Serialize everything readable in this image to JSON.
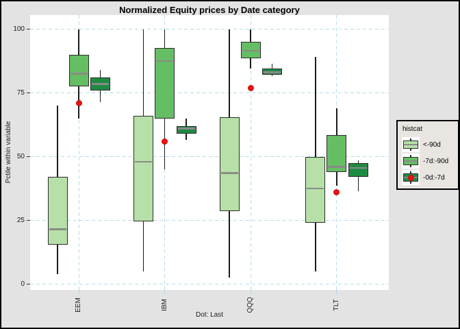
{
  "title": "Normalized Equity prices by Date category",
  "caption": "Dot: Last",
  "y_axis": {
    "label": "Pctile within variable",
    "ticks": [
      100,
      75,
      50,
      25,
      0
    ]
  },
  "x_axis": {
    "categories": [
      "EEM",
      "IBM",
      "QQQ",
      "TLT"
    ]
  },
  "legend": {
    "title": "histcat",
    "position": "right",
    "items": [
      {
        "label": "<-90d",
        "color": "#b7e0a8",
        "has_dot": false
      },
      {
        "label": "-7d:-90d",
        "color": "#65bd64",
        "has_dot": false
      },
      {
        "label": "-0d:-7d",
        "color": "#1f8a42",
        "has_dot": true
      }
    ]
  },
  "colors": {
    "light_green": "#b7e0a8",
    "medium_green": "#65bd64",
    "dark_green": "#1f8a42",
    "median_gray": "#8a8a8a",
    "dot_red": "#ee1111",
    "grid_blue": "#b5dce8",
    "background": "#e3e3e3",
    "panel": "#ffffff"
  },
  "chart_data": {
    "type": "boxplot",
    "title": "Normalized Equity prices by Date category",
    "xlabel": "",
    "ylabel": "Pctile within variable",
    "ylim": [
      0,
      100
    ],
    "grid": true,
    "legend_position": "right",
    "categories": [
      "EEM",
      "IBM",
      "QQQ",
      "TLT"
    ],
    "series": [
      {
        "name": "<-90d",
        "color": "#b7e0a8",
        "boxes": [
          {
            "min": 4,
            "q1": 15.5,
            "median": 21.5,
            "q3": 42,
            "max": 70
          },
          {
            "min": 5,
            "q1": 24.5,
            "median": 48,
            "q3": 66,
            "max": 100
          },
          {
            "min": 2.5,
            "q1": 28.5,
            "median": 43.5,
            "q3": 65.5,
            "max": 100
          },
          {
            "min": 5,
            "q1": 24,
            "median": 37.5,
            "q3": 50,
            "max": 89
          }
        ]
      },
      {
        "name": "-7d:-90d",
        "color": "#65bd64",
        "boxes": [
          {
            "min": 65,
            "q1": 77.5,
            "median": 82.5,
            "q3": 90,
            "max": 100
          },
          {
            "min": 45,
            "q1": 65,
            "median": 87.5,
            "q3": 92.5,
            "max": 100
          },
          {
            "min": 84.5,
            "q1": 88.5,
            "median": 91.5,
            "q3": 95,
            "max": 100
          },
          {
            "min": 38.5,
            "q1": 44,
            "median": 46,
            "q3": 58.5,
            "max": 69
          }
        ]
      },
      {
        "name": "-0d:-7d",
        "color": "#1f8a42",
        "boxes": [
          {
            "min": 71.5,
            "q1": 76,
            "median": 78.5,
            "q3": 81,
            "max": 84
          },
          {
            "min": 56.5,
            "q1": 59,
            "median": 61,
            "q3": 62,
            "max": 65
          },
          {
            "min": 81.5,
            "q1": 82,
            "median": 83,
            "q3": 84.5,
            "max": 86.5
          },
          {
            "min": 36.5,
            "q1": 42,
            "median": 45.5,
            "q3": 47.5,
            "max": 48.5
          }
        ]
      }
    ],
    "dots": {
      "name": "Last",
      "color": "#ee1111",
      "values": [
        71,
        56,
        77,
        36
      ]
    }
  }
}
